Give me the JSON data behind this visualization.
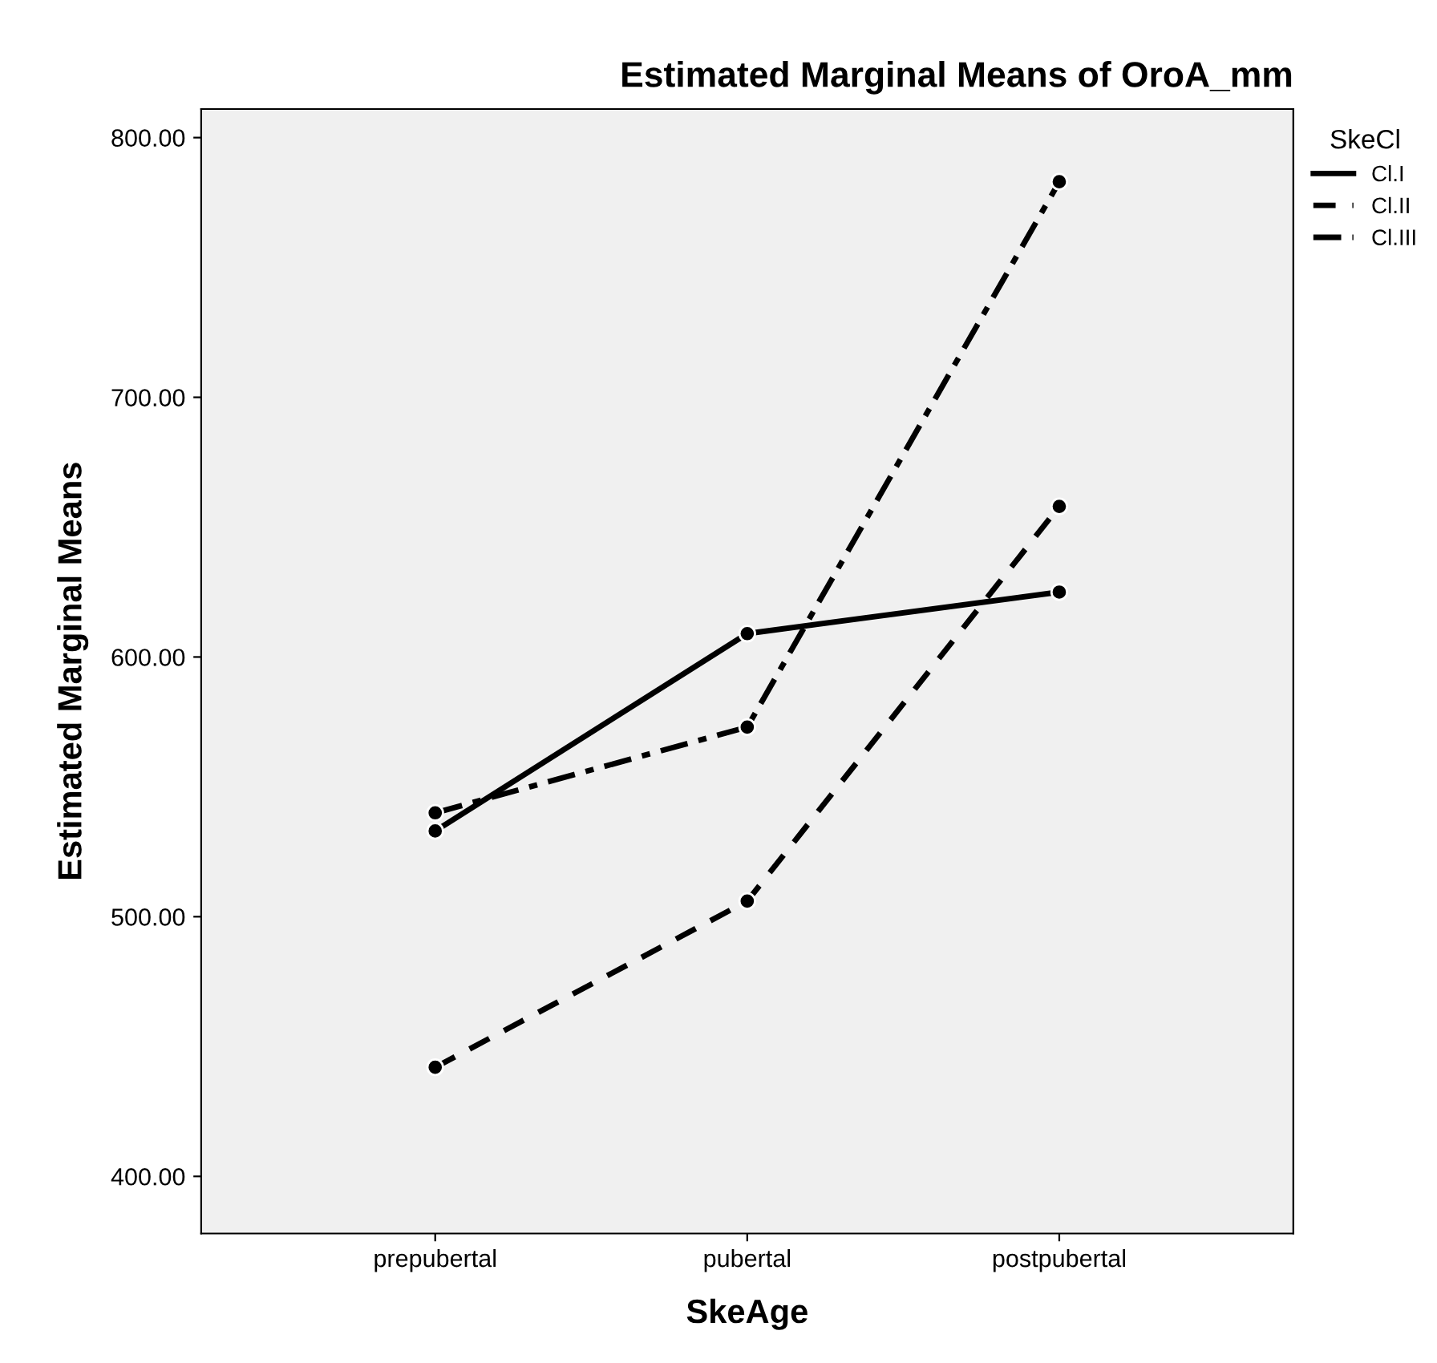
{
  "chart_data": {
    "type": "line",
    "title": "Estimated Marginal Means of OroA_mm",
    "xlabel": "SkeAge",
    "ylabel": "Estimated Marginal Means",
    "legend_title": "SkeCl",
    "categories": [
      "prepubertal",
      "pubertal",
      "postpubertal"
    ],
    "series": [
      {
        "name": "Cl.I",
        "color": "#000000",
        "line_style": "solid",
        "values": [
          533,
          609,
          625
        ]
      },
      {
        "name": "Cl.II",
        "color": "#000000",
        "line_style": "dashed",
        "values": [
          442,
          506,
          658
        ]
      },
      {
        "name": "Cl.III",
        "color": "#000000",
        "line_style": "dashdot",
        "values": [
          540,
          573,
          783
        ]
      }
    ],
    "ylim": [
      378,
      811
    ],
    "yticks": [
      {
        "value": 400,
        "label": "400.00"
      },
      {
        "value": 500,
        "label": "500.00"
      },
      {
        "value": 600,
        "label": "600.00"
      },
      {
        "value": 700,
        "label": "700.00"
      },
      {
        "value": 800,
        "label": "800.00"
      }
    ],
    "marker": "circle",
    "grid": false,
    "legend": "top right"
  }
}
